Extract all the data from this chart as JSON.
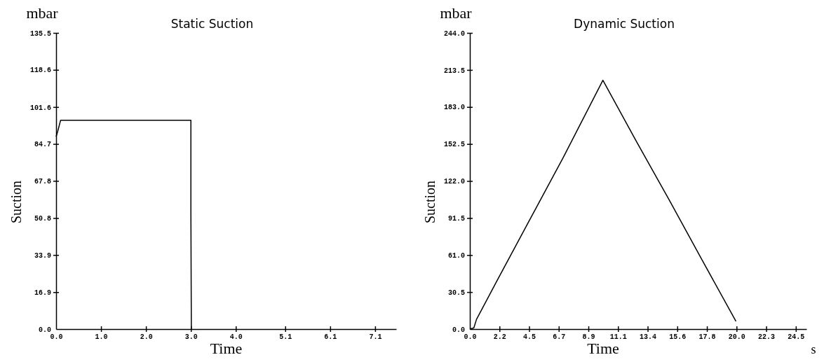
{
  "chart_data": [
    {
      "type": "line",
      "title": "Static Suction",
      "xlabel": "Time",
      "ylabel": "Suction",
      "annotations": [
        "mbar"
      ],
      "x": [
        0,
        0.03,
        0.1,
        3.0,
        3.0,
        3.01
      ],
      "series": [
        {
          "color": "#000000",
          "values": [
            88,
            90,
            95.5,
            95.5,
            54,
            0
          ]
        }
      ],
      "xlim": [
        0,
        7.57
      ],
      "ylim": [
        0,
        135.5
      ],
      "xticks": [
        {
          "value": 0,
          "label": "0.0"
        },
        {
          "value": 1,
          "label": "1.0"
        },
        {
          "value": 2,
          "label": "2.0"
        },
        {
          "value": 3,
          "label": "3.0"
        },
        {
          "value": 4,
          "label": "4.0"
        },
        5.1,
        6.1,
        7.1
      ],
      "yticks": [
        {
          "value": 0,
          "label": "0.0"
        },
        16.9,
        33.9,
        50.8,
        67.8,
        84.7,
        101.6,
        118.6,
        135.5
      ],
      "grid": false,
      "marker": "none",
      "line_style": "solid"
    },
    {
      "type": "line",
      "title": "Dynamic Suction",
      "xlabel": "Time",
      "ylabel": "Suction",
      "annotations": [
        "mbar",
        "s"
      ],
      "x": [
        0,
        0.3,
        0.5,
        2,
        4.5,
        7,
        10,
        12.5,
        15,
        17.5,
        20
      ],
      "series": [
        {
          "color": "#000000",
          "values": [
            0,
            1,
            8,
            39,
            90,
            141,
            205,
            155,
            106,
            56,
            6.4
          ]
        }
      ],
      "xlim": [
        0,
        25.3
      ],
      "ylim": [
        0,
        244
      ],
      "xticks": [
        {
          "value": 0,
          "label": "0.0"
        },
        {
          "value": 2.227,
          "label": "2.2"
        },
        {
          "value": 4.455,
          "label": "4.5"
        },
        {
          "value": 6.682,
          "label": "6.7"
        },
        {
          "value": 8.909,
          "label": "8.9"
        },
        {
          "value": 11.136,
          "label": "11.1"
        },
        {
          "value": 13.364,
          "label": "13.4"
        },
        {
          "value": 15.591,
          "label": "15.6"
        },
        {
          "value": 17.818,
          "label": "17.8"
        },
        {
          "value": 20.045,
          "label": "20.0"
        },
        {
          "value": 22.273,
          "label": "22.3"
        },
        {
          "value": 24.5,
          "label": "24.5"
        }
      ],
      "yticks": [
        {
          "value": 0,
          "label": "0.0"
        },
        30.5,
        {
          "value": 61,
          "label": "61.0"
        },
        91.5,
        {
          "value": 122,
          "label": "122.0"
        },
        152.5,
        {
          "value": 183,
          "label": "183.0"
        },
        213.5,
        {
          "value": 244,
          "label": "244.0"
        }
      ],
      "grid": false,
      "marker": "none",
      "line_style": "solid"
    }
  ]
}
